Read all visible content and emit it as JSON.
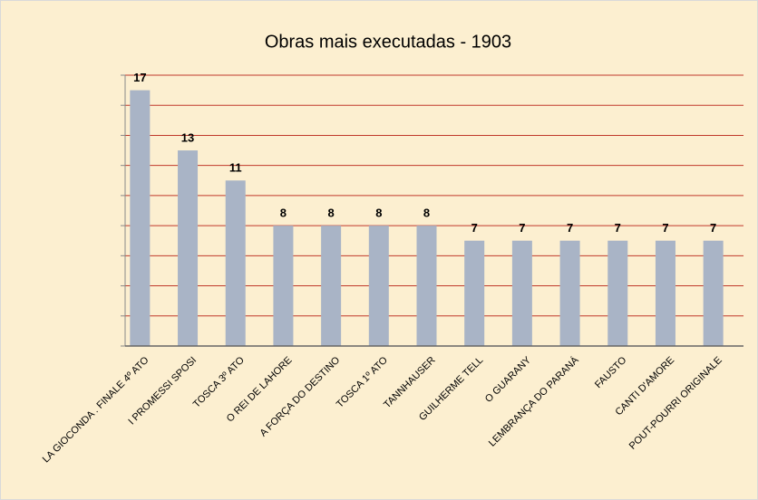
{
  "chart_data": {
    "type": "bar",
    "title": "Obras mais executadas - 1903",
    "categories": [
      "LA GIOCONDA . FINALE 4º ATO",
      "I PROMESSI SPOSI",
      "TOSCA 3º ATO",
      "O REI DE LAHORE",
      "A FORÇA DO DESTINO",
      "TOSCA 1º ATO",
      "TANNHAUSER",
      "GUILHERME TELL",
      "O GUARANY",
      "LEMBRANÇA DO PARANÁ",
      "FAUSTO",
      "CANTI D'AMORE",
      "POUT-POURRI ORIGINALE"
    ],
    "values": [
      17,
      13,
      11,
      8,
      8,
      8,
      8,
      7,
      7,
      7,
      7,
      7,
      7
    ],
    "color": "#a9b4c6",
    "ylim": [
      0,
      18
    ],
    "yticks": [
      0,
      2,
      4,
      6,
      8,
      10,
      12,
      14,
      16,
      18
    ],
    "grid": true,
    "grid_color": "#c0392b"
  }
}
